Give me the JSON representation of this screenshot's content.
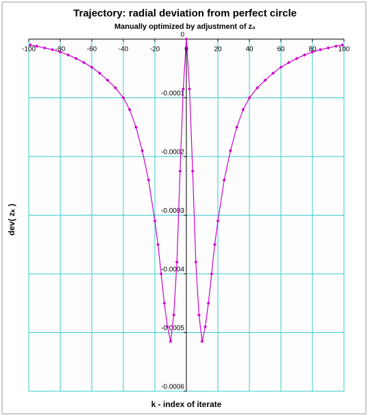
{
  "chart_data": {
    "type": "line",
    "title": "Trajectory: radial deviation from perfect circle",
    "subtitle": "Manually optimized by adjustment of z₀",
    "x_label": "k - index of iterate",
    "y_label": "dev( zₖ )",
    "x": [
      -99,
      -95,
      -90,
      -85,
      -80,
      -75,
      -70,
      -65,
      -60,
      -55,
      -50,
      -45,
      -40,
      -36,
      -32,
      -28,
      -24,
      -20,
      -18,
      -16,
      -14,
      -12,
      -10,
      -8,
      -6,
      -4,
      -2,
      0,
      2,
      4,
      6,
      8,
      10,
      12,
      14,
      16,
      18,
      20,
      24,
      28,
      32,
      36,
      40,
      45,
      50,
      55,
      60,
      65,
      70,
      75,
      80,
      85,
      90,
      95,
      99
    ],
    "series": [
      {
        "name": "dev",
        "color": "#cc00cc",
        "values": [
          -1e-05,
          -1.2e-05,
          -1.5e-05,
          -1.8e-05,
          -2.2e-05,
          -2.7e-05,
          -3.3e-05,
          -4e-05,
          -4.8e-05,
          -5.8e-05,
          -7e-05,
          -8.3e-05,
          -0.0001,
          -0.00012,
          -0.00015,
          -0.00019,
          -0.00024,
          -0.00031,
          -0.00035,
          -0.0004,
          -0.00045,
          -0.00049,
          -0.000515,
          -0.00047,
          -0.00038,
          -0.000225,
          -8.5e-05,
          0,
          -8.5e-05,
          -0.000225,
          -0.00038,
          -0.00047,
          -0.000515,
          -0.00049,
          -0.00045,
          -0.0004,
          -0.00035,
          -0.00031,
          -0.00024,
          -0.00019,
          -0.00015,
          -0.00012,
          -0.0001,
          -8.3e-05,
          -7e-05,
          -5.8e-05,
          -4.8e-05,
          -4e-05,
          -3.3e-05,
          -2.7e-05,
          -2.2e-05,
          -1.8e-05,
          -1.5e-05,
          -1.2e-05,
          -1e-05
        ]
      }
    ],
    "xlim": [
      -100,
      100
    ],
    "xticks": [
      -100,
      -80,
      -60,
      -40,
      -20,
      0,
      20,
      40,
      60,
      80,
      100
    ],
    "ylim": [
      -0.0006,
      0
    ],
    "yticks": [
      0,
      -0.0001,
      -0.0002,
      -0.0003,
      -0.0004,
      -0.0005,
      -0.0006
    ],
    "grid": true,
    "grid_color": "#33cccc"
  }
}
